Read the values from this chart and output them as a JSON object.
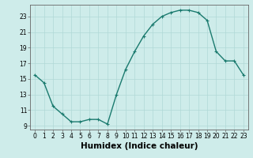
{
  "xlabel": "Humidex (Indice chaleur)",
  "x": [
    0,
    1,
    2,
    3,
    4,
    5,
    6,
    7,
    8,
    9,
    10,
    11,
    12,
    13,
    14,
    15,
    16,
    17,
    18,
    19,
    20,
    21,
    22,
    23
  ],
  "y": [
    15.5,
    14.5,
    11.5,
    10.5,
    9.5,
    9.5,
    9.8,
    9.8,
    9.2,
    13.0,
    16.2,
    18.5,
    20.5,
    22.0,
    23.0,
    23.5,
    23.8,
    23.8,
    23.5,
    22.5,
    18.5,
    17.3,
    17.3,
    15.5
  ],
  "line_color": "#1a7a6e",
  "marker": "+",
  "marker_size": 3,
  "bg_color": "#ceecea",
  "grid_color": "#b0d8d6",
  "axis_color": "#666666",
  "xlim": [
    -0.5,
    23.5
  ],
  "ylim": [
    8.5,
    24.5
  ],
  "yticks": [
    9,
    11,
    13,
    15,
    17,
    19,
    21,
    23
  ],
  "xticks": [
    0,
    1,
    2,
    3,
    4,
    5,
    6,
    7,
    8,
    9,
    10,
    11,
    12,
    13,
    14,
    15,
    16,
    17,
    18,
    19,
    20,
    21,
    22,
    23
  ],
  "tick_fontsize": 5.5,
  "xlabel_fontsize": 7.5,
  "linewidth": 1.0
}
